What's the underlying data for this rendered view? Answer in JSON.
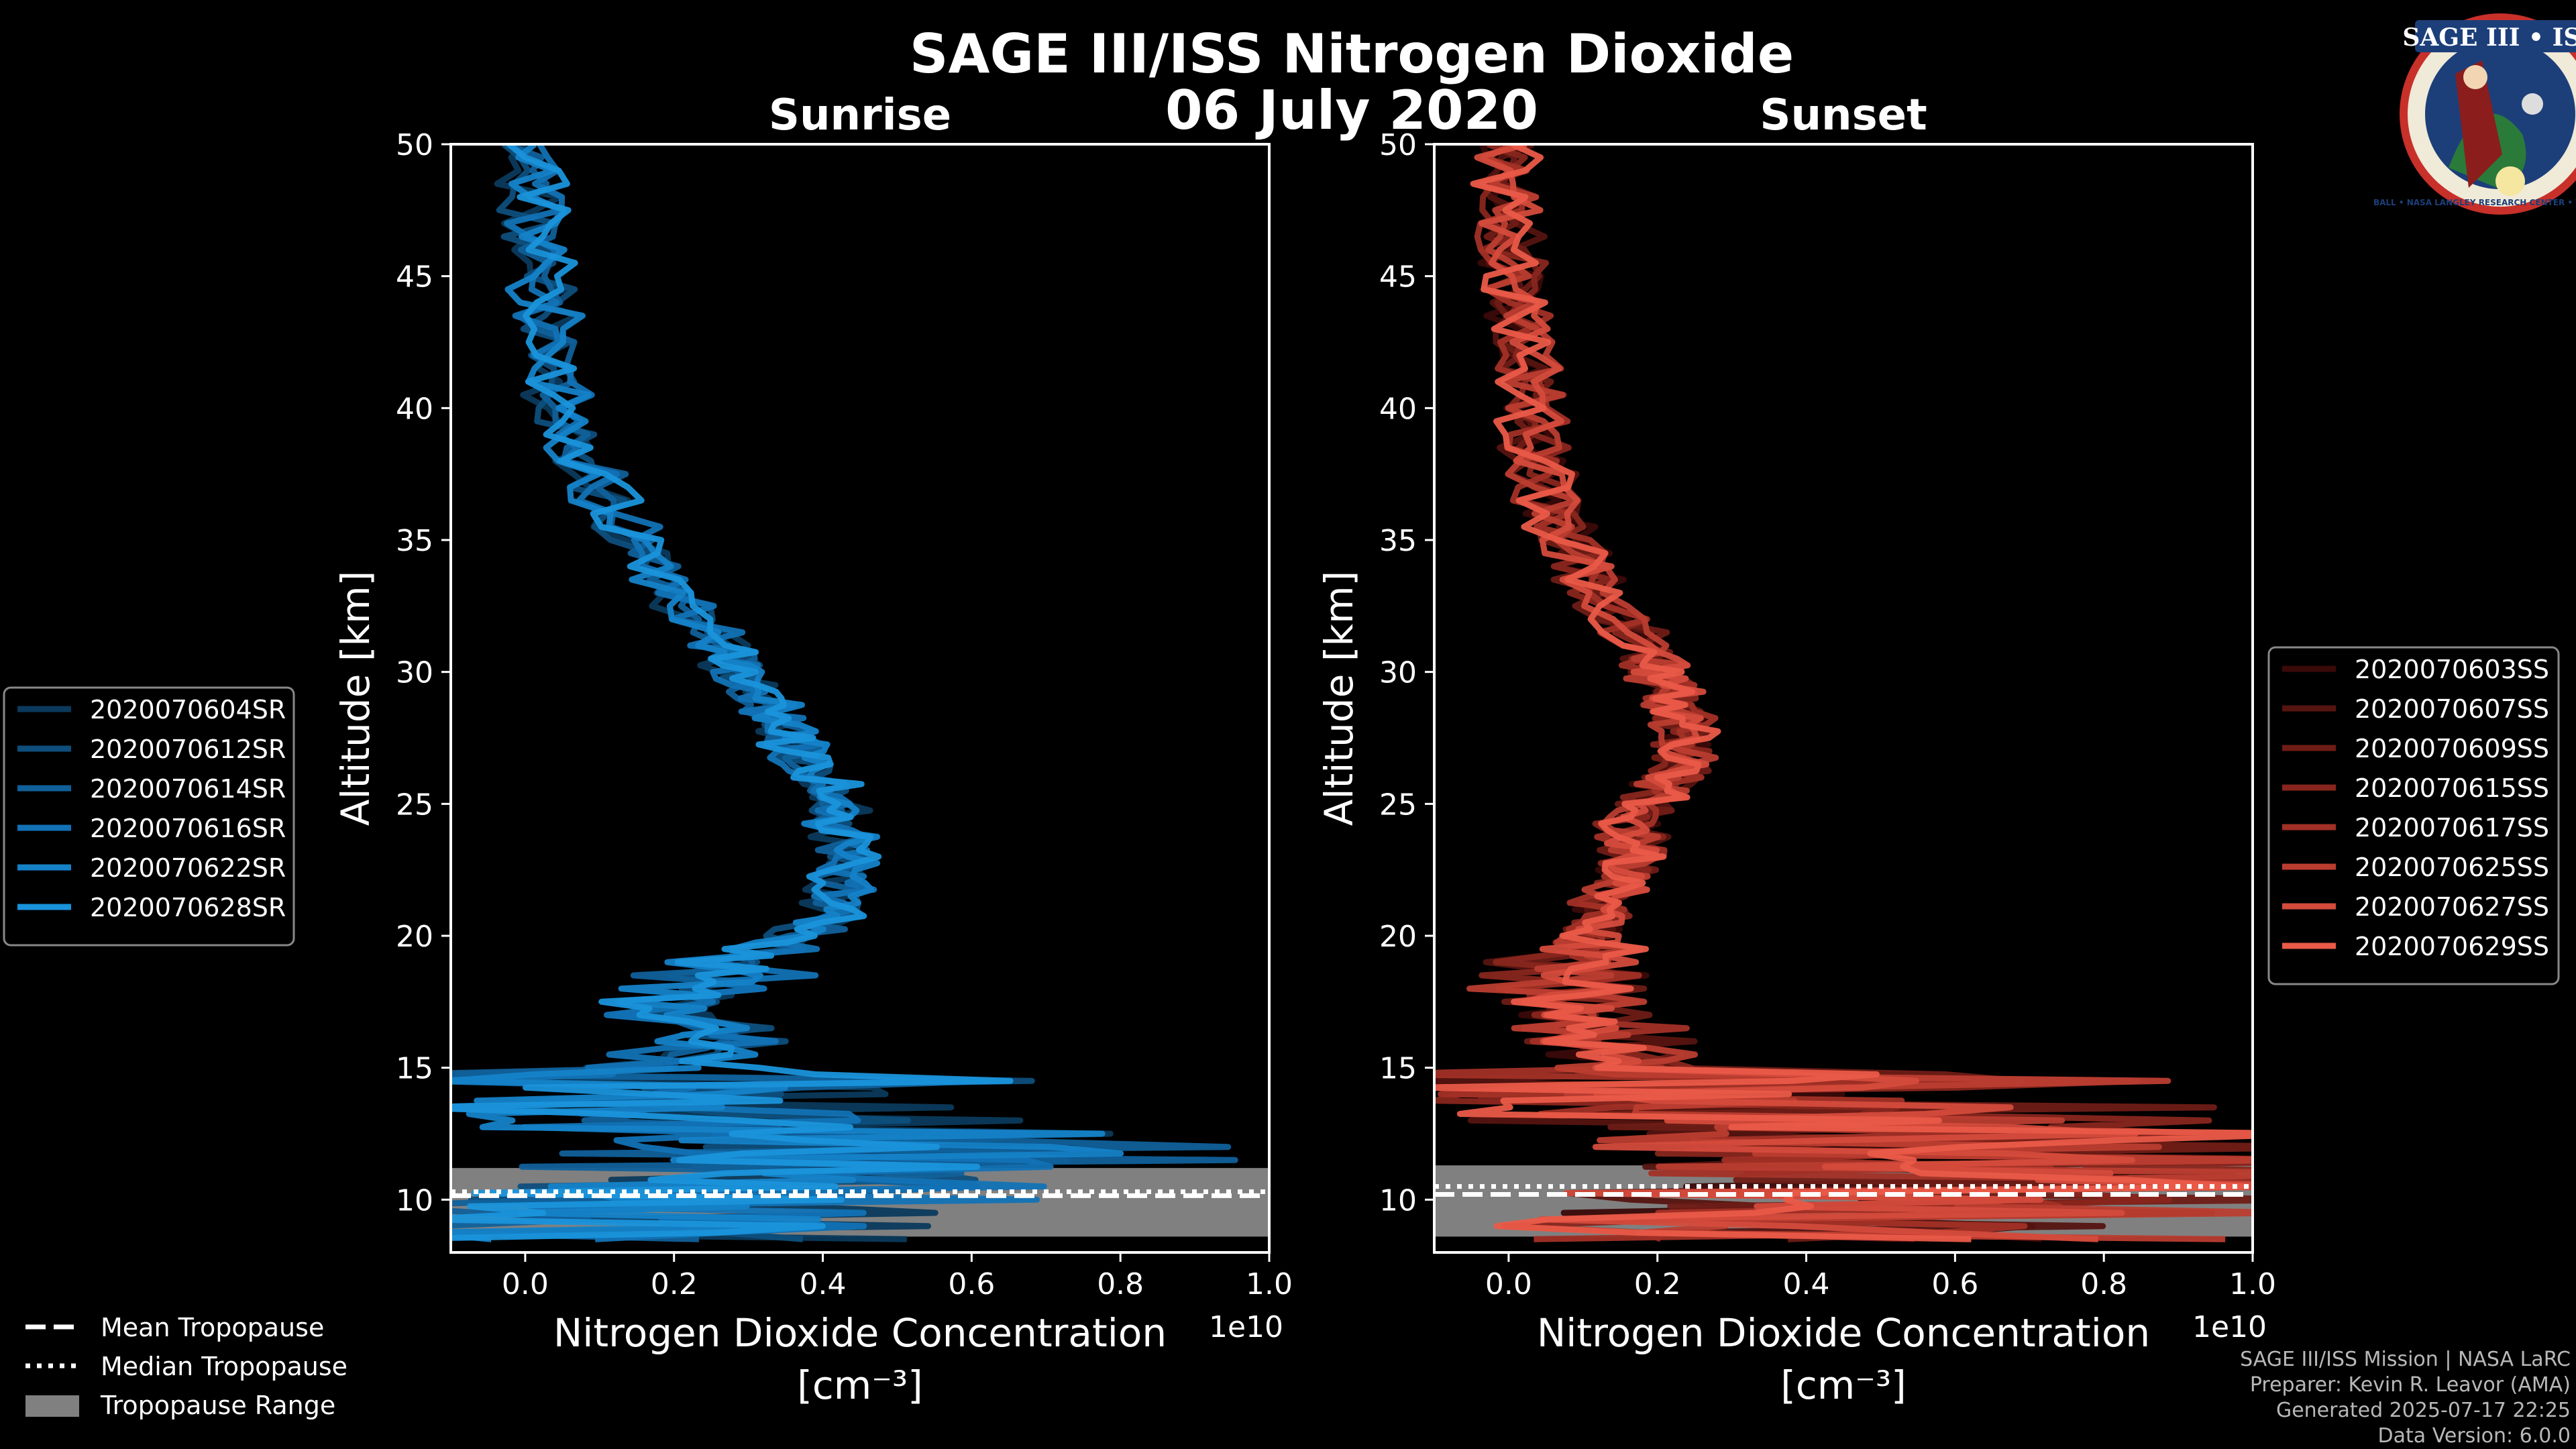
{
  "title": "SAGE III/ISS Nitrogen Dioxide",
  "date": "06 July 2020",
  "logo": {
    "text": "SAGE III • ISS",
    "ring_text": "BALL • NASA LANGLEY RESEARCH CENTER • TAS-I • ESA"
  },
  "chart_data": [
    {
      "type": "line",
      "title": "Sunrise",
      "xlabel_line1": "Nitrogen Dioxide Concentration",
      "xlabel_line2": "[cm⁻³]",
      "ylabel": "Altitude [km]",
      "x_offset_label": "1e10",
      "xlim": [
        -0.1,
        1.0
      ],
      "ylim": [
        8,
        50
      ],
      "xticks": [
        0.0,
        0.2,
        0.4,
        0.6,
        0.8,
        1.0
      ],
      "xtick_labels": [
        "0.0",
        "0.2",
        "0.4",
        "0.6",
        "0.8",
        "1.0"
      ],
      "yticks": [
        10,
        15,
        20,
        25,
        30,
        35,
        40,
        45,
        50
      ],
      "ytick_labels": [
        "10",
        "15",
        "20",
        "25",
        "30",
        "35",
        "40",
        "45",
        "50"
      ],
      "tropopause": {
        "mean": 10.15,
        "median": 10.3,
        "range": [
          8.6,
          11.2
        ]
      },
      "series": [
        {
          "name": "2020070604SR",
          "color": "#0b3a5c"
        },
        {
          "name": "2020070612SR",
          "color": "#0e4e7c"
        },
        {
          "name": "2020070614SR",
          "color": "#10609a"
        },
        {
          "name": "2020070616SR",
          "color": "#1272b5"
        },
        {
          "name": "2020070622SR",
          "color": "#1582c8"
        },
        {
          "name": "2020070628SR",
          "color": "#1a93db"
        }
      ],
      "profile": {
        "alt": [
          8.5,
          9,
          9.5,
          10,
          10.5,
          11,
          11.5,
          12,
          12.5,
          13,
          13.5,
          14,
          14.5,
          15,
          15.5,
          16,
          16.5,
          17,
          17.5,
          18,
          18.5,
          19,
          19.5,
          20,
          20.5,
          21,
          21.5,
          22,
          22.5,
          23,
          23.5,
          24,
          24.5,
          25,
          25.5,
          26,
          26.5,
          27,
          27.5,
          28,
          28.5,
          29,
          29.5,
          30,
          30.5,
          31,
          32,
          33,
          34,
          35,
          36,
          37,
          38,
          39,
          40,
          41,
          42,
          43,
          44,
          45,
          46,
          47,
          48,
          49,
          50
        ],
        "no2": [
          0.05,
          0.1,
          0.15,
          0.2,
          0.25,
          0.35,
          0.4,
          0.45,
          0.3,
          0.25,
          0.15,
          0.12,
          0.18,
          0.2,
          0.22,
          0.25,
          0.22,
          0.2,
          0.22,
          0.25,
          0.27,
          0.3,
          0.33,
          0.36,
          0.4,
          0.42,
          0.42,
          0.43,
          0.43,
          0.44,
          0.43,
          0.42,
          0.42,
          0.41,
          0.41,
          0.4,
          0.38,
          0.37,
          0.35,
          0.34,
          0.33,
          0.32,
          0.3,
          0.28,
          0.27,
          0.26,
          0.23,
          0.2,
          0.17,
          0.15,
          0.12,
          0.1,
          0.08,
          0.06,
          0.05,
          0.04,
          0.035,
          0.03,
          0.025,
          0.02,
          0.015,
          0.01,
          0.01,
          0.01,
          0.01
        ]
      }
    },
    {
      "type": "line",
      "title": "Sunset",
      "xlabel_line1": "Nitrogen Dioxide Concentration",
      "xlabel_line2": "[cm⁻³]",
      "ylabel": "Altitude [km]",
      "x_offset_label": "1e10",
      "xlim": [
        -0.1,
        1.0
      ],
      "ylim": [
        8,
        50
      ],
      "xticks": [
        0.0,
        0.2,
        0.4,
        0.6,
        0.8,
        1.0
      ],
      "xtick_labels": [
        "0.0",
        "0.2",
        "0.4",
        "0.6",
        "0.8",
        "1.0"
      ],
      "yticks": [
        10,
        15,
        20,
        25,
        30,
        35,
        40,
        45,
        50
      ],
      "ytick_labels": [
        "10",
        "15",
        "20",
        "25",
        "30",
        "35",
        "40",
        "45",
        "50"
      ],
      "tropopause": {
        "mean": 10.2,
        "median": 10.5,
        "range": [
          8.6,
          11.3
        ]
      },
      "series": [
        {
          "name": "2020070603SS",
          "color": "#3a0a08"
        },
        {
          "name": "2020070607SS",
          "color": "#551410"
        },
        {
          "name": "2020070609SS",
          "color": "#6e1c16"
        },
        {
          "name": "2020070615SS",
          "color": "#88261d"
        },
        {
          "name": "2020070617SS",
          "color": "#a23026"
        },
        {
          "name": "2020070625SS",
          "color": "#bb3d30"
        },
        {
          "name": "2020070627SS",
          "color": "#d44b3c"
        },
        {
          "name": "2020070629SS",
          "color": "#ea5a48"
        }
      ],
      "profile": {
        "alt": [
          8.5,
          9,
          9.5,
          10,
          10.5,
          11,
          11.5,
          12,
          12.5,
          13,
          13.5,
          14,
          14.5,
          15,
          15.5,
          16,
          16.5,
          17,
          17.5,
          18,
          18.5,
          19,
          19.5,
          20,
          20.5,
          21,
          21.5,
          22,
          22.5,
          23,
          23.5,
          24,
          24.5,
          25,
          25.5,
          26,
          26.5,
          27,
          27.5,
          28,
          28.5,
          29,
          29.5,
          30,
          30.5,
          31,
          32,
          33,
          34,
          35,
          36,
          37,
          38,
          39,
          40,
          41,
          42,
          43,
          44,
          45,
          46,
          47,
          48,
          49,
          50
        ],
        "no2": [
          0.3,
          0.35,
          0.4,
          0.45,
          0.5,
          0.55,
          0.5,
          0.45,
          0.4,
          0.32,
          0.28,
          0.22,
          0.2,
          0.18,
          0.15,
          0.13,
          0.12,
          0.1,
          0.08,
          0.07,
          0.08,
          0.09,
          0.1,
          0.11,
          0.12,
          0.12,
          0.13,
          0.15,
          0.16,
          0.17,
          0.17,
          0.16,
          0.17,
          0.18,
          0.2,
          0.22,
          0.23,
          0.24,
          0.24,
          0.23,
          0.23,
          0.22,
          0.21,
          0.2,
          0.19,
          0.18,
          0.15,
          0.12,
          0.1,
          0.08,
          0.06,
          0.05,
          0.04,
          0.035,
          0.03,
          0.025,
          0.02,
          0.015,
          0.01,
          0.005,
          0.0,
          0.0,
          0.0,
          0.0,
          0.0
        ]
      }
    }
  ],
  "tropo_legend": [
    {
      "label": "Mean Tropopause"
    },
    {
      "label": "Median Tropopause"
    },
    {
      "label": "Tropopause Range"
    }
  ],
  "footer": [
    "SAGE III/ISS Mission | NASA LaRC",
    "Preparer: Kevin R. Leavor (AMA)",
    "Generated 2025-07-17 22:25",
    "Data Version: 6.0.0"
  ]
}
